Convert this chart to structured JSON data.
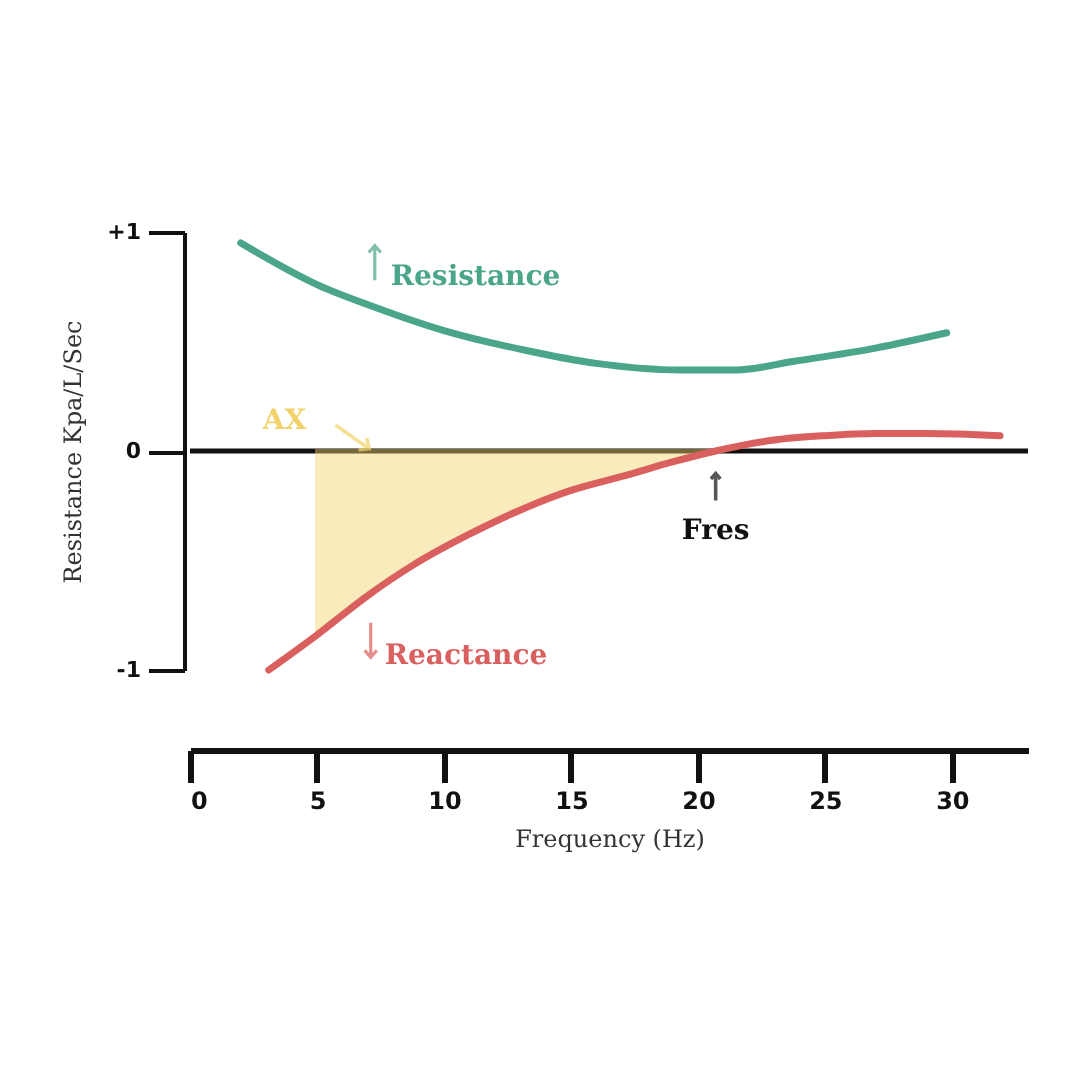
{
  "chart_data": {
    "type": "line",
    "xlabel": "Frequency (Hz)",
    "ylabel": "Resistance Kpa/L/Sec",
    "xlim": [
      0,
      33
    ],
    "xticks": [
      0,
      5,
      10,
      15,
      20,
      25,
      30
    ],
    "ylim": [
      -1,
      1
    ],
    "yticks": [
      {
        "value": 1,
        "label": "+1"
      },
      {
        "value": 0,
        "label": "0"
      },
      {
        "value": -1,
        "label": "-1"
      }
    ],
    "series": [
      {
        "type": "area",
        "color": "#f2d36b",
        "x": [
          5,
          7,
          8.8,
          11,
          13.2,
          15,
          17.2,
          19,
          20.7
        ],
        "values": [
          -0.84,
          -0.66,
          -0.52,
          -0.38,
          -0.26,
          -0.18,
          -0.11,
          -0.05,
          0
        ]
      },
      {
        "name": "Resistance",
        "color": "#4aa58a",
        "x": [
          2,
          5,
          7.2,
          10,
          13.2,
          16,
          19.3,
          21.5,
          23.8,
          27,
          29.8
        ],
        "values": [
          0.95,
          0.76,
          0.66,
          0.55,
          0.46,
          0.4,
          0.37,
          0.37,
          0.41,
          0.47,
          0.54
        ]
      },
      {
        "name": "Reactance",
        "color": "#d9605e",
        "x": [
          3.1,
          5,
          7,
          8.8,
          11,
          13.2,
          15,
          17.2,
          19,
          20.7,
          23,
          25,
          27,
          29,
          31.9
        ],
        "values": [
          -1.0,
          -0.84,
          -0.66,
          -0.52,
          -0.38,
          -0.26,
          -0.18,
          -0.11,
          -0.05,
          0,
          0.05,
          0.07,
          0.08,
          0.08,
          0.07
        ]
      }
    ],
    "ref_lines": [
      {
        "axis": "y",
        "value": 0,
        "color": "#111111"
      }
    ],
    "annotations": [
      {
        "text": "AX",
        "x": 7.5,
        "y": 0
      },
      {
        "text": "Fres",
        "x": 20.7,
        "y": 0
      }
    ],
    "legend": "left",
    "grid": false
  }
}
